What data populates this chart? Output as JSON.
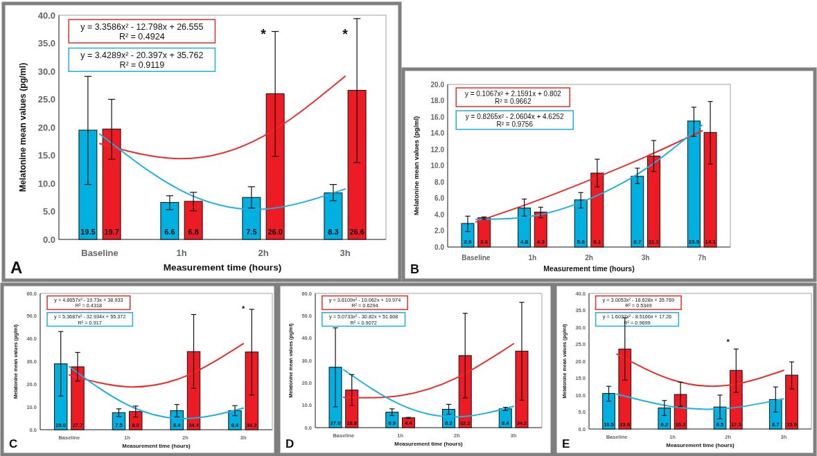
{
  "chart_data": [
    {
      "type": "bar",
      "xlabel": "Measurement time (hours)",
      "ylabel": "Melatonine mean values (pg/ml)",
      "categories": [
        "Baseline",
        "1h",
        "2h",
        "3h"
      ],
      "ylim": [
        0,
        40
      ],
      "yticks": [
        {
          "value": 0,
          "label": "0.0"
        },
        {
          "value": 5,
          "label": "5.0"
        },
        {
          "value": 10,
          "label": "10.0"
        },
        {
          "value": 15,
          "label": "15.0"
        },
        {
          "value": 20,
          "label": "20.0"
        },
        {
          "value": 25,
          "label": "25.0"
        },
        {
          "value": 30,
          "label": "30.0"
        },
        {
          "value": 35,
          "label": "35.0"
        },
        {
          "value": 40,
          "label": "40.0"
        }
      ],
      "series": [
        {
          "color": "#00b0e0",
          "values": [
            19.5,
            6.6,
            7.5,
            8.3
          ],
          "errors": [
            [
              9.8,
              29.1
            ],
            [
              5.3,
              7.8
            ],
            [
              5.6,
              9.4
            ],
            [
              6.9,
              9.8
            ]
          ],
          "value_labels": [
            "19.5",
            "6.6",
            "7.5",
            "8.3"
          ]
        },
        {
          "color": "#ed1c24",
          "values": [
            19.7,
            6.8,
            26.0,
            26.6
          ],
          "errors": [
            [
              14.3,
              25.0
            ],
            [
              5.1,
              8.4
            ],
            [
              14.8,
              37.1
            ],
            [
              13.7,
              39.4
            ]
          ],
          "value_labels": [
            "19.7",
            "6.8",
            "26.0",
            "26.6"
          ]
        },
        {
          "type": "line",
          "color": "#ee2a2a",
          "values": [
            17.1,
            14.4,
            18.4,
            29.1
          ]
        },
        {
          "type": "line",
          "color": "#1ab0e6",
          "values": [
            18.8,
            8.7,
            5.4,
            9.0
          ]
        }
      ],
      "annotations": [
        "y = 3.3586x² - 12.798x + 26.555",
        "R² = 0.4924",
        "y = 3.4289x² - 20.397x + 35.762",
        "R² = 0.9119",
        "A",
        "*",
        "*"
      ]
    },
    {
      "type": "bar",
      "xlabel": "Measurement time (hours)",
      "ylabel": "Melatonine mean values (pg/ml)",
      "categories": [
        "Baseline",
        "1h",
        "2h",
        "3h",
        "7h"
      ],
      "ylim": [
        0,
        20
      ],
      "yticks": [
        {
          "value": 0,
          "label": "0.0"
        },
        {
          "value": 2,
          "label": "2.0"
        },
        {
          "value": 4,
          "label": "4.0"
        },
        {
          "value": 6,
          "label": "6.0"
        },
        {
          "value": 8,
          "label": "8.0"
        },
        {
          "value": 10,
          "label": "10.0"
        },
        {
          "value": 12,
          "label": "12.0"
        },
        {
          "value": 14,
          "label": "14.0"
        },
        {
          "value": 16,
          "label": "16.0"
        },
        {
          "value": 18,
          "label": "18.0"
        },
        {
          "value": 20,
          "label": "20.0"
        }
      ],
      "series": [
        {
          "color": "#00b0e0",
          "values": [
            2.9,
            4.8,
            5.8,
            8.7,
            15.5
          ],
          "errors": [
            [
              1.9,
              3.8
            ],
            [
              3.8,
              5.9
            ],
            [
              4.8,
              6.7
            ],
            [
              7.8,
              9.7
            ],
            [
              13.6,
              17.2
            ]
          ],
          "value_labels": [
            "2.9",
            "4.8",
            "5.8",
            "8.7",
            "15.5"
          ]
        },
        {
          "color": "#ed1c24",
          "values": [
            3.6,
            4.3,
            9.1,
            11.2,
            14.1
          ],
          "errors": [
            [
              3.4,
              3.7
            ],
            [
              3.6,
              4.9
            ],
            [
              7.4,
              10.8
            ],
            [
              9.3,
              13.1
            ],
            [
              10.2,
              17.9
            ]
          ],
          "value_labels": [
            "3.6",
            "4.3",
            "9.1",
            "11.2",
            "14.1"
          ]
        },
        {
          "type": "line",
          "color": "#ee2a2a",
          "values": [
            3.1,
            5.5,
            8.2,
            11.1,
            14.3
          ]
        },
        {
          "type": "line",
          "color": "#1ab0e6",
          "values": [
            3.4,
            3.8,
            5.9,
            9.6,
            15.0
          ]
        }
      ],
      "annotations": [
        "y = 0.1067x² + 2.1591x + 0.802",
        "R² = 0.9662",
        "y = 0.8265x² - 2.0604x + 4.6252",
        "R² = 0.9756",
        "B"
      ]
    },
    {
      "type": "bar",
      "xlabel": "Measurement time (hours)",
      "ylabel": "Melatonine mean values (pg/ml)",
      "categories": [
        "Baseline",
        "1h",
        "2h",
        "3h"
      ],
      "ylim": [
        0,
        60
      ],
      "yticks": [
        {
          "value": 0,
          "label": "0.0"
        },
        {
          "value": 10,
          "label": "10.0"
        },
        {
          "value": 20,
          "label": "20.0"
        },
        {
          "value": 30,
          "label": "30.0"
        },
        {
          "value": 40,
          "label": "40.0"
        },
        {
          "value": 50,
          "label": "50.0"
        },
        {
          "value": 60,
          "label": "60.0"
        }
      ],
      "series": [
        {
          "color": "#00b0e0",
          "values": [
            29.0,
            7.5,
            8.4,
            8.4
          ],
          "errors": [
            [
              14.8,
              43.2
            ],
            [
              5.8,
              9.2
            ],
            [
              5.6,
              11.1
            ],
            [
              6.2,
              10.6
            ]
          ],
          "value_labels": [
            "29.0",
            "7.5",
            "8.4",
            "8.4"
          ]
        },
        {
          "color": "#ed1c24",
          "values": [
            27.7,
            8.0,
            34.4,
            34.2
          ],
          "errors": [
            [
              21.4,
              34.0
            ],
            [
              5.6,
              10.4
            ],
            [
              18.2,
              50.7
            ],
            [
              15.3,
              53.0
            ]
          ],
          "value_labels": [
            "27.7",
            "8.0",
            "34.4",
            "34.2"
          ]
        },
        {
          "type": "line",
          "color": "#ee2a2a",
          "values": [
            24.1,
            18.9,
            23.5,
            37.9
          ]
        },
        {
          "type": "line",
          "color": "#1ab0e6",
          "values": [
            27.8,
            11.0,
            4.9,
            9.5
          ]
        }
      ],
      "annotations": [
        "y = 4.8657x² - 19.73x + 38.933",
        "R² = 0.4318",
        "y = 5.3687x² - 32.934x + 55.372",
        "R² = 0.917",
        "C",
        "*"
      ]
    },
    {
      "type": "bar",
      "xlabel": "Measurement time (hours)",
      "ylabel": "Melatonine mean values (pg/ml)",
      "categories": [
        "Baseline",
        "1h",
        "2h",
        "3h"
      ],
      "ylim": [
        0,
        60
      ],
      "yticks": [
        {
          "value": 0,
          "label": "0.0"
        },
        {
          "value": 10,
          "label": "10.0"
        },
        {
          "value": 20,
          "label": "20.0"
        },
        {
          "value": 30,
          "label": "30.0"
        },
        {
          "value": 40,
          "label": "40.0"
        },
        {
          "value": 50,
          "label": "50.0"
        },
        {
          "value": 60,
          "label": "60.0"
        }
      ],
      "series": [
        {
          "color": "#00b0e0",
          "values": [
            27.0,
            6.9,
            8.2,
            8.4
          ],
          "errors": [
            [
              9.3,
              44.6
            ],
            [
              5.4,
              8.4
            ],
            [
              6.0,
              10.4
            ],
            [
              7.6,
              9.1
            ]
          ],
          "value_labels": [
            "27.0",
            "6.9",
            "8.2",
            "8.4"
          ]
        },
        {
          "color": "#ed1c24",
          "values": [
            16.8,
            4.4,
            32.2,
            34.2
          ],
          "errors": [
            [
              9.9,
              23.7
            ],
            [
              4.1,
              4.6
            ],
            [
              13.3,
              51.1
            ],
            [
              12.3,
              56.0
            ]
          ],
          "value_labels": [
            "16.8",
            "4.4",
            "32.2",
            "34.2"
          ]
        },
        {
          "type": "line",
          "color": "#ee2a2a",
          "values": [
            13.5,
            14.3,
            22.3,
            37.5
          ]
        },
        {
          "type": "line",
          "color": "#1ab0e6",
          "values": [
            25.9,
            10.3,
            4.8,
            9.5
          ]
        }
      ],
      "annotations": [
        "y = 3.6109x² - 10.062x + 19.974",
        "R² = 0.6294",
        "y = 5.0733x² - 30.82x + 51.608",
        "R² = 0.9072",
        "D"
      ]
    },
    {
      "type": "bar",
      "xlabel": "Measurement time (hours)",
      "ylabel": "Melatonine mean values (pg/ml)",
      "categories": [
        "Baseline",
        "1h",
        "2h",
        "3h"
      ],
      "ylim": [
        0,
        40
      ],
      "yticks": [
        {
          "value": 0,
          "label": "0.0"
        },
        {
          "value": 5,
          "label": "5.0"
        },
        {
          "value": 10,
          "label": "10.0"
        },
        {
          "value": 15,
          "label": "15.0"
        },
        {
          "value": 20,
          "label": "20.0"
        },
        {
          "value": 25,
          "label": "25.0"
        },
        {
          "value": 30,
          "label": "30.0"
        },
        {
          "value": 35,
          "label": "35.0"
        },
        {
          "value": 40,
          "label": "40.0"
        }
      ],
      "series": [
        {
          "color": "#00b0e0",
          "values": [
            10.5,
            6.2,
            6.5,
            8.7
          ],
          "errors": [
            [
              8.2,
              12.6
            ],
            [
              4.0,
              8.4
            ],
            [
              3.0,
              10.0
            ],
            [
              5.0,
              12.4
            ]
          ],
          "value_labels": [
            "10.5",
            "6.2",
            "6.5",
            "8.7"
          ]
        },
        {
          "color": "#ed1c24",
          "values": [
            23.6,
            10.2,
            17.3,
            15.9
          ],
          "errors": [
            [
              14.4,
              32.8
            ],
            [
              6.6,
              13.8
            ],
            [
              10.8,
              23.6
            ],
            [
              11.8,
              19.8
            ]
          ],
          "value_labels": [
            "23.6",
            "10.2",
            "17.3",
            "15.9"
          ]
        },
        {
          "type": "line",
          "color": "#ee2a2a",
          "values": [
            22.1,
            14.5,
            12.9,
            17.3
          ]
        },
        {
          "type": "line",
          "color": "#1ab0e6",
          "values": [
            10.3,
            6.6,
            6.1,
            8.9
          ]
        }
      ],
      "annotations": [
        "y = 3.0053x² - 16.628x + 35.769",
        "R² = 0.5349",
        "y = 1.6037x² - 8.5166x + 17.26",
        "R² = 0.9699",
        "E",
        "*"
      ]
    }
  ]
}
